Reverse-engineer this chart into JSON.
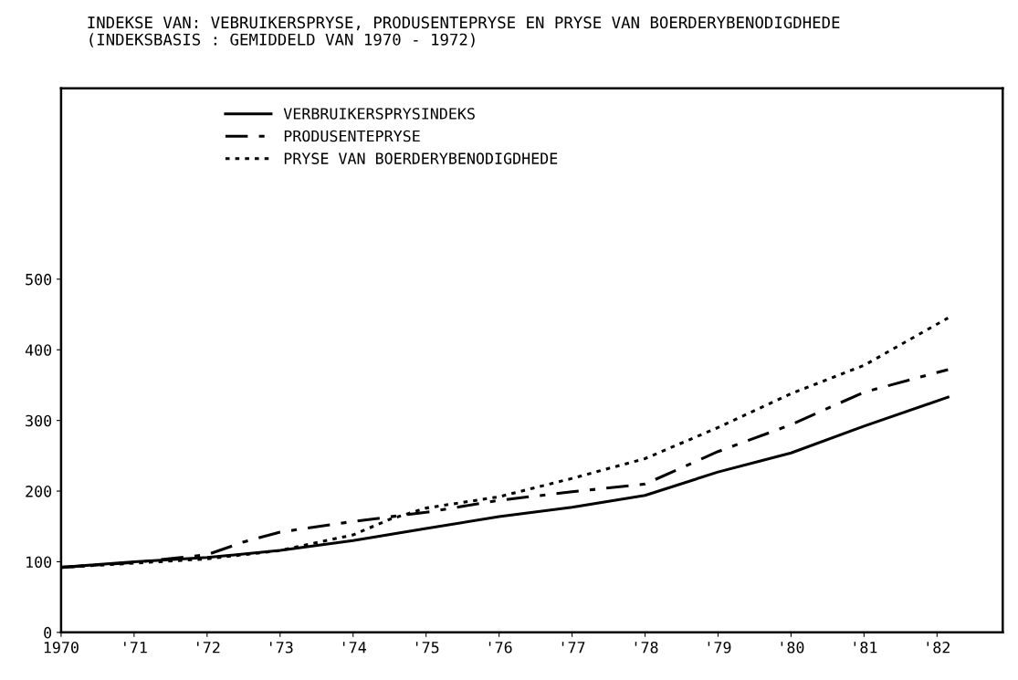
{
  "chart_data": {
    "type": "line",
    "title": "INDEKSE VAN: VEBRUIKERSPRYSE, PRODUSENTEPRYSE EN PRYSE VAN BOERDERYBENODIGDHEDE",
    "subtitle": "(INDEKSBASIS : GEMIDDELD VAN 1970 - 1972)",
    "series": [
      {
        "name": "VERBRUIKERSPRYSINDEKS",
        "color": "#000000",
        "line_style": "solid",
        "x": [
          1970,
          1971,
          1972,
          1973,
          1974,
          1975,
          1976,
          1977,
          1978,
          1979,
          1980,
          1981,
          1982.15
        ],
        "values": [
          92,
          100,
          106,
          116,
          130,
          147,
          164,
          177,
          194,
          227,
          254,
          292,
          333
        ]
      },
      {
        "name": "PRODUSENTEPRYSE",
        "color": "#000000",
        "line_style": "dashdot",
        "x": [
          1970,
          1971,
          1972,
          1972.5,
          1973,
          1974,
          1975,
          1976,
          1977,
          1978,
          1979,
          1980,
          1981,
          1982.15
        ],
        "values": [
          92,
          99,
          110,
          128,
          142,
          157,
          170,
          187,
          199,
          210,
          256,
          294,
          340,
          372
        ]
      },
      {
        "name": "PRYSE VAN BOERDERYBENODIGDHEDE",
        "color": "#000000",
        "line_style": "dotted",
        "x": [
          1970,
          1971,
          1972,
          1973,
          1974,
          1974.5,
          1975,
          1976,
          1977,
          1978,
          1979,
          1980,
          1981,
          1982.15
        ],
        "values": [
          92,
          98,
          104,
          116,
          138,
          160,
          176,
          192,
          218,
          246,
          290,
          338,
          378,
          445
        ]
      }
    ],
    "xlim": [
      1970,
      1982.9
    ],
    "xticks": [
      {
        "value": 1970,
        "label": "1970"
      },
      {
        "value": 1971,
        "label": "'71"
      },
      {
        "value": 1972,
        "label": "'72"
      },
      {
        "value": 1973,
        "label": "'73"
      },
      {
        "value": 1974,
        "label": "'74"
      },
      {
        "value": 1975,
        "label": "'75"
      },
      {
        "value": 1976,
        "label": "'76"
      },
      {
        "value": 1977,
        "label": "'77"
      },
      {
        "value": 1978,
        "label": "'78"
      },
      {
        "value": 1979,
        "label": "'79"
      },
      {
        "value": 1980,
        "label": "'80"
      },
      {
        "value": 1981,
        "label": "'81"
      },
      {
        "value": 1982,
        "label": "'82"
      }
    ],
    "ylim": [
      0,
      770
    ],
    "yticks": [
      0,
      100,
      200,
      300,
      400,
      500
    ],
    "grid": false,
    "legend": "top left",
    "marker": "none"
  }
}
